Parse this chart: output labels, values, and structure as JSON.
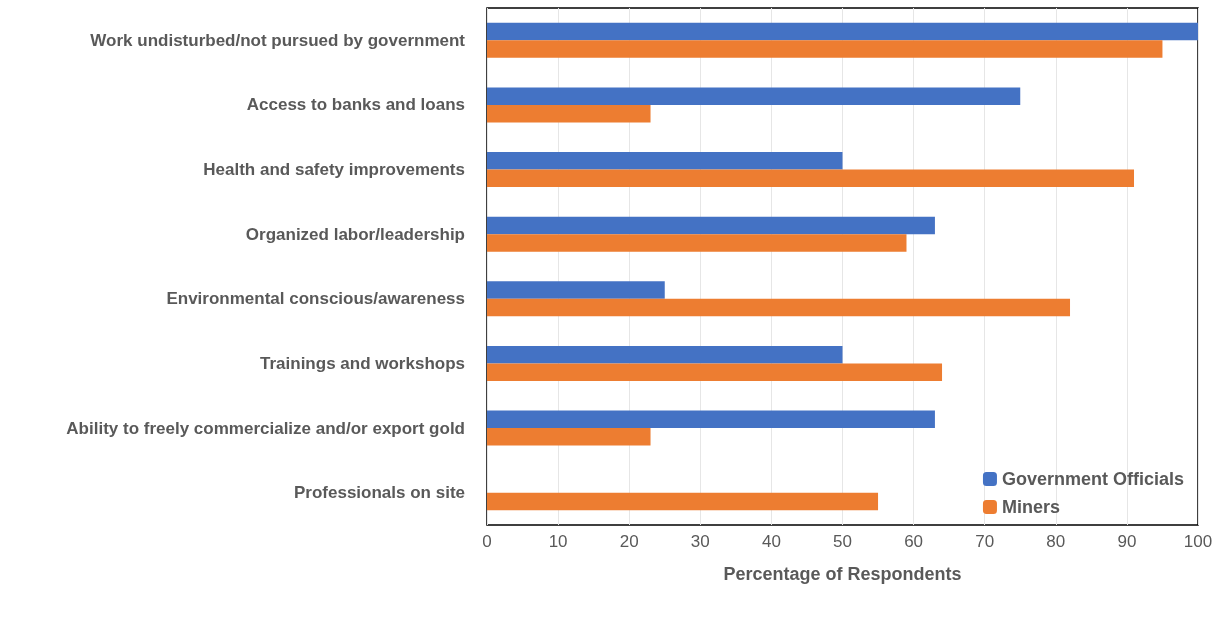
{
  "chart_data": {
    "type": "bar",
    "orientation": "horizontal",
    "xlabel": "Percentage of Respondents",
    "categories": [
      "Work undisturbed/not pursued by government",
      "Access to banks and loans",
      "Health and safety improvements",
      "Organized labor/leadership",
      "Environmental conscious/awareness",
      "Trainings and workshops",
      "Ability to freely commercialize and/or export gold",
      "Professionals on site"
    ],
    "series": [
      {
        "name": "Government Officials",
        "color": "#4472c4",
        "values": [
          100,
          75,
          50,
          63,
          25,
          50,
          63,
          0
        ]
      },
      {
        "name": "Miners",
        "color": "#ed7d31",
        "values": [
          95,
          23,
          91,
          59,
          82,
          64,
          23,
          55
        ]
      }
    ],
    "xlim": [
      0,
      100
    ],
    "xticks": [
      0,
      10,
      20,
      30,
      40,
      50,
      60,
      70,
      80,
      90,
      100
    ],
    "grid": "x",
    "legend": "bottom right"
  }
}
